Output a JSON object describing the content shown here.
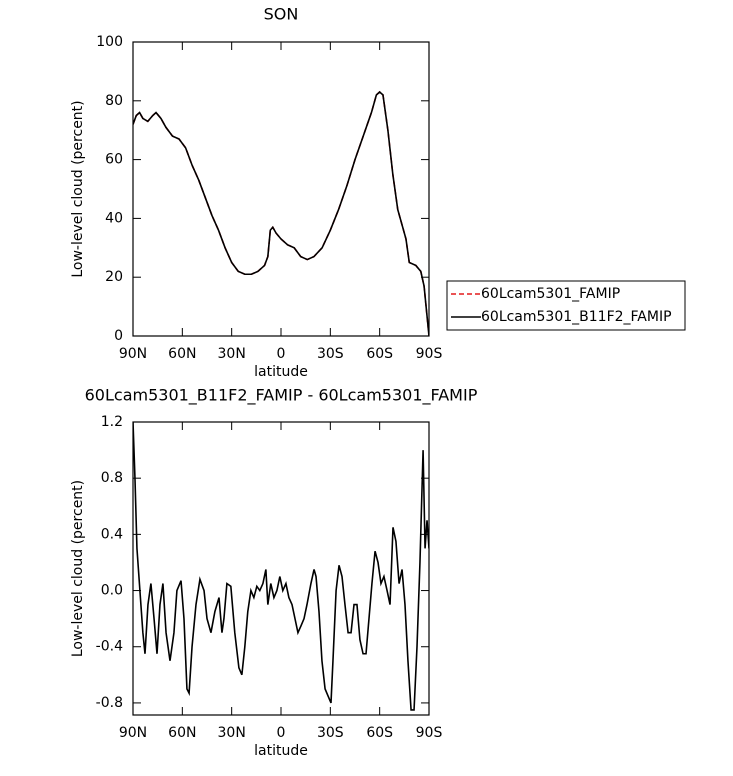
{
  "chart_data": [
    {
      "type": "line",
      "title": "SON",
      "x_label": "latitude",
      "y_label": "Low-level cloud (percent)",
      "x": [
        90,
        88,
        86,
        84,
        81,
        78,
        76,
        73,
        70,
        66,
        62,
        58,
        54,
        50,
        46,
        42,
        38,
        34,
        30,
        26,
        22,
        18,
        14,
        10,
        8,
        6.5,
        5,
        3,
        0,
        -4,
        -8,
        -12,
        -16,
        -20,
        -25,
        -30,
        -35,
        -40,
        -45,
        -50,
        -55,
        -58,
        -60,
        -62,
        -65,
        -68,
        -71,
        -74,
        -76,
        -78,
        -82,
        -85,
        -87,
        -90
      ],
      "series": [
        {
          "name": "60Lcam5301_FAMIP",
          "color": "#e31a1c",
          "dashed": true,
          "values": [
            72,
            75,
            76,
            74,
            73,
            75,
            76,
            74,
            71,
            68,
            67,
            64,
            58,
            53,
            47,
            41,
            36,
            30,
            25,
            22,
            21,
            21,
            22,
            24,
            27,
            36,
            37,
            35,
            33,
            31,
            30,
            27,
            26,
            27,
            30,
            36,
            43,
            51,
            60,
            68,
            76,
            82,
            83,
            82,
            70,
            55,
            43,
            37,
            33,
            25,
            24,
            22,
            17,
            0
          ]
        },
        {
          "name": "60Lcam5301_B11F2_FAMIP",
          "color": "#000000",
          "dashed": false,
          "values": [
            72,
            75,
            76,
            74,
            73,
            75,
            76,
            74,
            71,
            68,
            67,
            64,
            58,
            53,
            47,
            41,
            36,
            30,
            25,
            22,
            21,
            21,
            22,
            24,
            27,
            36,
            37,
            35,
            33,
            31,
            30,
            27,
            26,
            27,
            30,
            36,
            43,
            51,
            60,
            68,
            76,
            82,
            83,
            82,
            70,
            55,
            43,
            37,
            33,
            25,
            24,
            22,
            17,
            0
          ]
        }
      ],
      "xlim": [
        90,
        -90
      ],
      "xticks": [
        {
          "value": 90,
          "label": "90N"
        },
        {
          "value": 60,
          "label": "60N"
        },
        {
          "value": 30,
          "label": "30N"
        },
        0,
        {
          "value": -30,
          "label": "30S"
        },
        {
          "value": -60,
          "label": "60S"
        },
        {
          "value": -90,
          "label": "90S"
        }
      ],
      "ylim": [
        0,
        100
      ],
      "yticks": [
        0,
        20,
        40,
        60,
        80,
        100
      ],
      "legend": "outside-right"
    },
    {
      "type": "line",
      "title": "60Lcam5301_B11F2_FAMIP - 60Lcam5301_FAMIP",
      "x_label": "latitude",
      "y_label": "Low-level cloud (percent)",
      "x": [
        90,
        88.8,
        87.6,
        85.8,
        84,
        82.7,
        80.9,
        79.1,
        77.2,
        75.4,
        73.6,
        71.8,
        69.9,
        67.5,
        65.1,
        63.3,
        60.8,
        59,
        57.2,
        55.9,
        54.1,
        51.7,
        49.3,
        46.8,
        45,
        42.6,
        40.2,
        37.7,
        35.9,
        34.7,
        32.9,
        30.5,
        28.1,
        25.6,
        23.8,
        22,
        20.2,
        18.3,
        16.5,
        14.7,
        12.9,
        11,
        9.2,
        8,
        6.2,
        4.3,
        2.5,
        0.7,
        -1.1,
        -3,
        -4.8,
        -6.7,
        -8.5,
        -10.3,
        -12.2,
        -14,
        -15.8,
        -18.2,
        -20.1,
        -21.3,
        -23.1,
        -24.9,
        -26.8,
        -28.6,
        -30.4,
        -31.6,
        -33.5,
        -35.3,
        -37.1,
        -38.9,
        -40.8,
        -42.6,
        -44.4,
        -46.2,
        -48,
        -49.9,
        -51.7,
        -53.5,
        -55.3,
        -57.2,
        -59,
        -60.8,
        -62.6,
        -64.5,
        -66.3,
        -68.1,
        -69.9,
        -71.8,
        -73.6,
        -75.4,
        -77.2,
        -79.1,
        -80.9,
        -82.7,
        -84.5,
        -86.4,
        -87.6,
        -88.8,
        -90
      ],
      "series": [
        {
          "name": "60Lcam5301_B11F2_FAMIP - 60Lcam5301_FAMIP",
          "color": "#000000",
          "dashed": false,
          "values": [
            1.2,
            0.8,
            0.3,
            0,
            -0.3,
            -0.45,
            -0.1,
            0.05,
            -0.2,
            -0.45,
            -0.1,
            0.05,
            -0.3,
            -0.5,
            -0.3,
            0,
            0.07,
            -0.2,
            -0.7,
            -0.73,
            -0.4,
            -0.1,
            0.08,
            0,
            -0.2,
            -0.3,
            -0.15,
            -0.05,
            -0.3,
            -0.2,
            0.05,
            0.03,
            -0.3,
            -0.55,
            -0.6,
            -0.4,
            -0.15,
            0,
            -0.05,
            0.03,
            0,
            0.05,
            0.15,
            -0.1,
            0.05,
            -0.05,
            0,
            0.1,
            0,
            0.05,
            -0.05,
            -0.1,
            -0.2,
            -0.3,
            -0.25,
            -0.2,
            -0.1,
            0.05,
            0.15,
            0.1,
            -0.15,
            -0.5,
            -0.7,
            -0.75,
            -0.8,
            -0.5,
            0,
            0.18,
            0.1,
            -0.1,
            -0.3,
            -0.3,
            -0.1,
            -0.1,
            -0.35,
            -0.45,
            -0.45,
            -0.2,
            0.05,
            0.28,
            0.2,
            0.05,
            0.1,
            0,
            -0.1,
            0.45,
            0.35,
            0.05,
            0.15,
            -0.1,
            -0.5,
            -0.85,
            -0.85,
            -0.4,
            0.2,
            1,
            0.3,
            0.5,
            0.3
          ]
        }
      ],
      "xlim": [
        90,
        -90
      ],
      "xticks": [
        {
          "value": 90,
          "label": "90N"
        },
        {
          "value": 60,
          "label": "60N"
        },
        {
          "value": 30,
          "label": "30N"
        },
        0,
        {
          "value": -30,
          "label": "30S"
        },
        {
          "value": -60,
          "label": "60S"
        },
        {
          "value": -90,
          "label": "90S"
        }
      ],
      "ylim": [
        -0.886,
        1.2
      ],
      "yticks": [
        {
          "value": -0.8,
          "label": "-0.8"
        },
        {
          "value": -0.4,
          "label": "-0.4"
        },
        {
          "value": 0,
          "label": "0.0"
        },
        0.4,
        0.8,
        1.2
      ]
    }
  ]
}
